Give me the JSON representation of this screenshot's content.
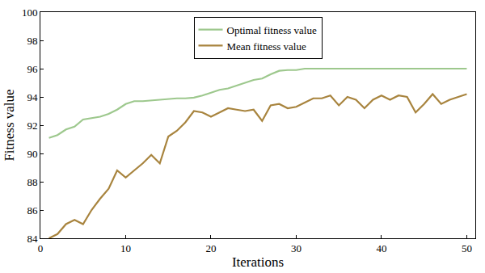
{
  "chart_data": {
    "type": "line",
    "x_label": "Iterations",
    "y_label": "Fitness value",
    "x": [
      1,
      2,
      3,
      4,
      5,
      6,
      7,
      8,
      9,
      10,
      11,
      12,
      13,
      14,
      15,
      16,
      17,
      18,
      19,
      20,
      21,
      22,
      23,
      24,
      25,
      26,
      27,
      28,
      29,
      30,
      31,
      32,
      33,
      34,
      35,
      36,
      37,
      38,
      39,
      40,
      41,
      42,
      43,
      44,
      45,
      46,
      47,
      48,
      49,
      50
    ],
    "series": [
      {
        "name": "Optimal fitness value",
        "color": "#9dc88d",
        "values": [
          91.1,
          91.3,
          91.7,
          91.9,
          92.4,
          92.5,
          92.6,
          92.8,
          93.1,
          93.5,
          93.7,
          93.7,
          93.75,
          93.8,
          93.85,
          93.9,
          93.9,
          93.95,
          94.1,
          94.3,
          94.5,
          94.6,
          94.8,
          95.0,
          95.2,
          95.3,
          95.6,
          95.85,
          95.9,
          95.9,
          96.0,
          96.0,
          96.0,
          96.0,
          96.0,
          96.0,
          96.0,
          96.0,
          96.0,
          96.0,
          96.0,
          96.0,
          96.0,
          96.0,
          96.0,
          96.0,
          96.0,
          96.0,
          96.0,
          96.0
        ]
      },
      {
        "name": "Mean fitness value",
        "color": "#a8843e",
        "values": [
          84.0,
          84.3,
          85.0,
          85.3,
          85.0,
          86.0,
          86.8,
          87.5,
          88.8,
          88.3,
          88.8,
          89.3,
          89.9,
          89.3,
          91.2,
          91.6,
          92.2,
          93.0,
          92.9,
          92.6,
          92.9,
          93.2,
          93.1,
          93.0,
          93.1,
          92.3,
          93.4,
          93.5,
          93.2,
          93.3,
          93.6,
          93.9,
          93.9,
          94.1,
          93.4,
          94.0,
          93.8,
          93.2,
          93.8,
          94.1,
          93.8,
          94.1,
          94.0,
          92.9,
          93.5,
          94.2,
          93.5,
          93.8,
          94.0,
          94.2
        ]
      }
    ],
    "xlim": [
      0,
      51
    ],
    "xticks": [
      0,
      10,
      20,
      30,
      40,
      50
    ],
    "ylim": [
      84,
      100
    ],
    "yticks": [
      84,
      86,
      88,
      90,
      92,
      94,
      96,
      98,
      100
    ],
    "grid": false,
    "legend": "upper center"
  }
}
